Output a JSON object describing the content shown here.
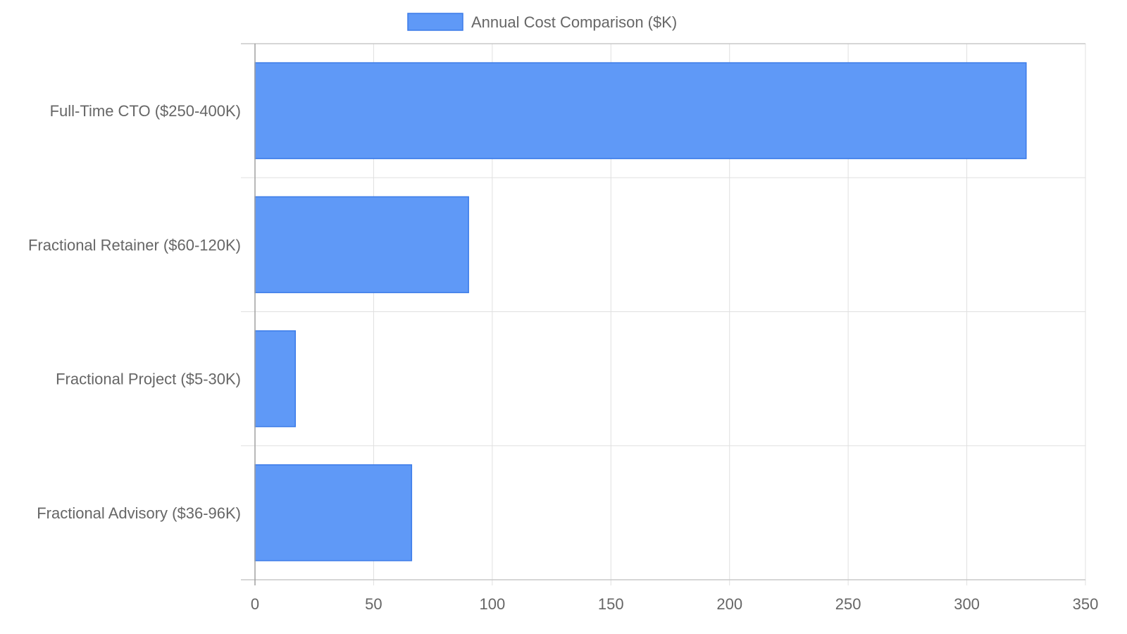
{
  "chart_data": {
    "type": "bar",
    "orientation": "horizontal",
    "categories": [
      "Full-Time CTO ($250-400K)",
      "Fractional Retainer ($60-120K)",
      "Fractional Project ($5-30K)",
      "Fractional Advisory ($36-96K)"
    ],
    "series": [
      {
        "name": "Annual Cost Comparison ($K)",
        "values": [
          325,
          90,
          17,
          66
        ],
        "color": "#5f99f7",
        "border_color": "#3b7be8"
      }
    ],
    "title": "",
    "xlabel": "",
    "ylabel": "",
    "xlim": [
      0,
      350
    ],
    "x_ticks": [
      "0",
      "50",
      "100",
      "150",
      "200",
      "250",
      "300",
      "350"
    ],
    "grid": true,
    "legend_position": "top-center"
  }
}
